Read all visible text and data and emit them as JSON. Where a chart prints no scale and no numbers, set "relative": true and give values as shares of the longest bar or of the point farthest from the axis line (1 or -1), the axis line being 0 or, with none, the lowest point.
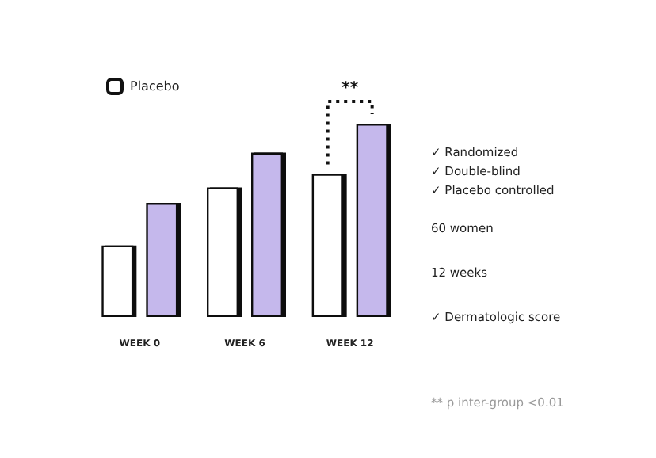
{
  "chart_data": {
    "type": "bar",
    "relative": true,
    "categories": [
      "WEEK 0",
      "WEEK 6",
      "WEEK 12"
    ],
    "series": [
      {
        "name": "Placebo",
        "color": "#ffffff",
        "values": [
          0.37,
          0.67,
          0.74
        ]
      },
      {
        "color": "#c5b8ec",
        "values": [
          0.59,
          0.85,
          1
        ]
      }
    ],
    "legend": "top left",
    "annotations": [
      "**",
      "✓ Randomized",
      "✓ Double-blind",
      "✓ Placebo controlled",
      "60 women",
      "12 weeks",
      "✓ Dermatologic score",
      "** p inter-group <0.01"
    ]
  }
}
